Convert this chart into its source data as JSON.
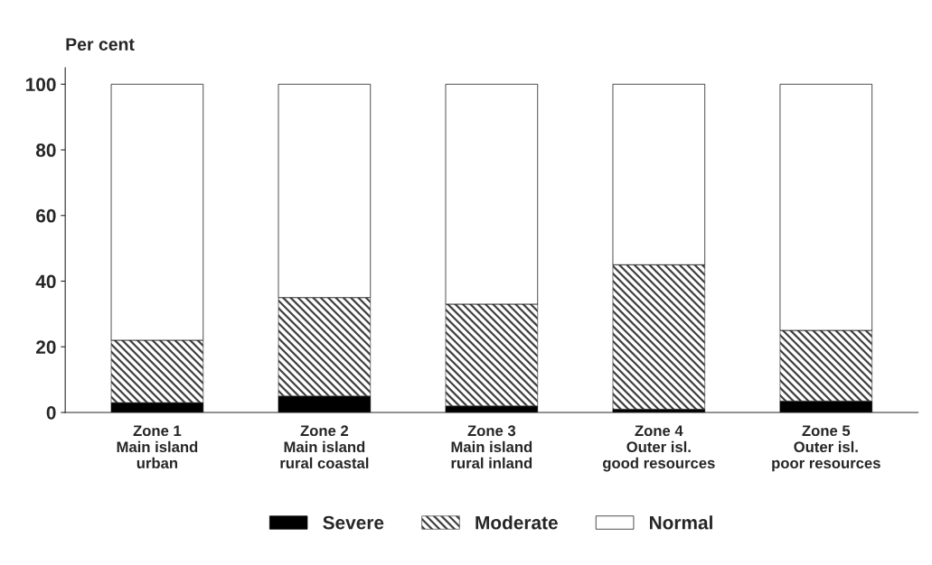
{
  "chart_data": {
    "type": "bar",
    "stacked": true,
    "ylabel": "Per cent",
    "categories": [
      "Zone 1\nMain island\nurban",
      "Zone 2\nMain island\nrural coastal",
      "Zone 3\nMain island\nrural inland",
      "Zone 4\nOuter isl.\ngood resources",
      "Zone 5\nOuter isl.\npoor resources"
    ],
    "series": [
      {
        "name": "Severe",
        "color": "#000000",
        "values": [
          3,
          5,
          2,
          1,
          3.5
        ]
      },
      {
        "name": "Moderate",
        "color": "#404040",
        "values": [
          19,
          30,
          31,
          44,
          21.5
        ]
      },
      {
        "name": "Normal",
        "color": "#ffffff",
        "values": [
          78,
          65,
          67,
          55,
          75
        ]
      }
    ],
    "ylim": [
      0,
      105
    ],
    "yticks": [
      0,
      20,
      40,
      60,
      80,
      100
    ],
    "grid": false,
    "legend": "bottom"
  }
}
